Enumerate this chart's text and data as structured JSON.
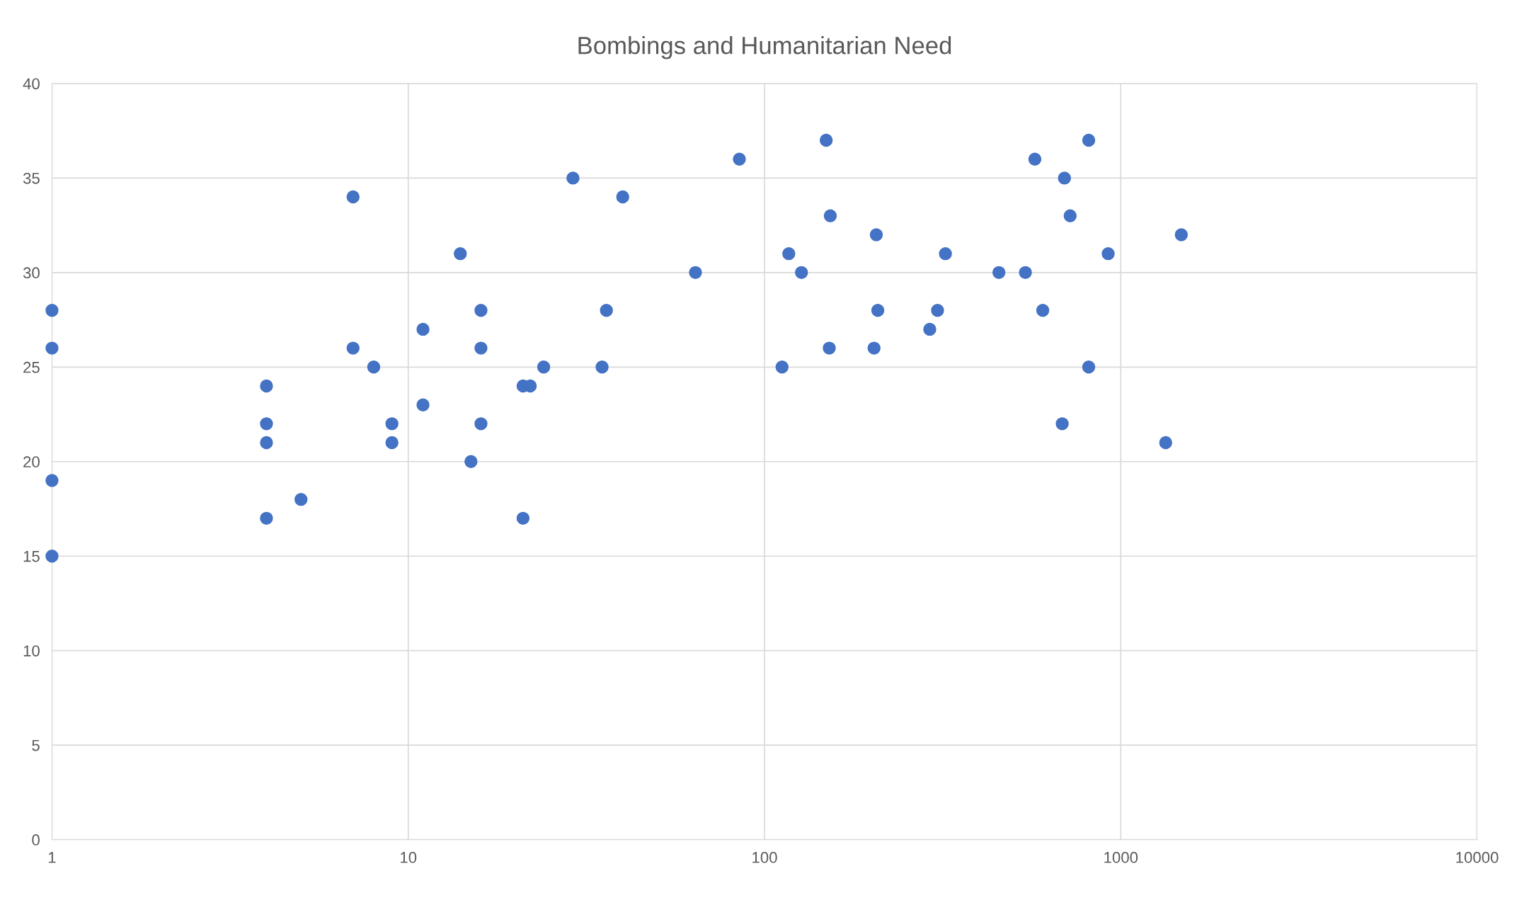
{
  "chart_data": {
    "type": "scatter",
    "title": "Bombings and Humanitarian Need",
    "x": [
      1,
      1,
      1,
      1,
      4,
      4,
      4,
      4,
      5,
      7,
      7,
      8,
      9,
      9,
      11,
      11,
      14,
      15,
      16,
      16,
      16,
      21,
      21,
      22,
      24,
      29,
      35,
      36,
      40,
      64,
      85,
      112,
      117,
      127,
      149,
      152,
      153,
      203,
      206,
      208,
      291,
      306,
      322,
      455,
      540,
      574,
      604,
      685,
      695,
      721,
      813,
      813,
      922,
      1337,
      1479
    ],
    "series": [
      {
        "color": "#4472c4",
        "values": [
          28,
          26,
          19,
          15,
          24,
          22,
          21,
          17,
          18,
          34,
          26,
          25,
          22,
          21,
          27,
          23,
          31,
          20,
          28,
          26,
          22,
          17,
          24,
          24,
          25,
          35,
          25,
          28,
          34,
          30,
          36,
          25,
          31,
          30,
          37,
          26,
          33,
          26,
          32,
          28,
          27,
          28,
          31,
          30,
          30,
          36,
          28,
          22,
          35,
          33,
          37,
          25,
          31,
          21,
          32
        ]
      }
    ],
    "log": "x",
    "xlim": [
      1,
      10000
    ],
    "xticks": [
      1,
      10,
      100,
      1000,
      10000
    ],
    "ylim": [
      0,
      40
    ],
    "yticks": [
      0,
      5,
      10,
      15,
      20,
      25,
      30,
      35,
      40
    ],
    "grid": true,
    "marker": "circle",
    "legend": false
  }
}
